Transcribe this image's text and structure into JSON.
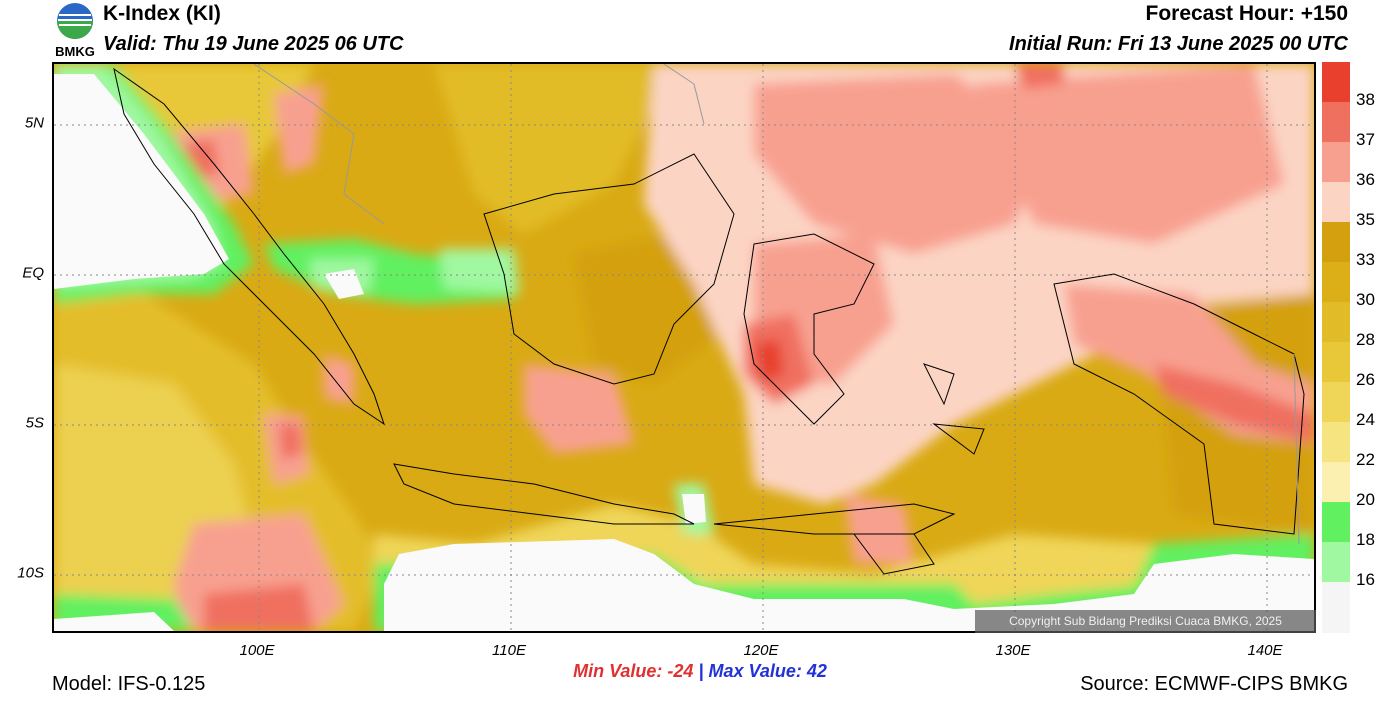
{
  "header": {
    "logo_text": "BMKG",
    "title": "K-Index (KI)",
    "valid": "Valid: Thu 19 June 2025 06 UTC",
    "forecast_hour": "Forecast Hour: +150",
    "initial_run": "Initial Run: Fri 13 June 2025 00 UTC"
  },
  "map": {
    "latitude_labels": [
      "5N",
      "EQ",
      "5S",
      "10S"
    ],
    "longitude_labels": [
      "100E",
      "110E",
      "120E",
      "130E",
      "140E"
    ],
    "copyright": "Copyright Sub Bidang Prediksi Cuaca BMKG, 2025"
  },
  "colorbar": {
    "labels": [
      "38",
      "37",
      "36",
      "35",
      "33",
      "30",
      "28",
      "26",
      "24",
      "22",
      "20",
      "18",
      "16"
    ],
    "colors": [
      "#e8402c",
      "#f07060",
      "#f8a090",
      "#fcd4c4",
      "#d4a010",
      "#dcae18",
      "#e2bc28",
      "#e8c838",
      "#efd558",
      "#f6e480",
      "#fbf0b0",
      "#60f060",
      "#a0f8a0"
    ]
  },
  "footer": {
    "min_label": "Min Value: -24",
    "separator": "|",
    "max_label": "Max Value:  42",
    "model": "Model: IFS-0.125",
    "source": "Source: ECMWF-CIPS BMKG"
  }
}
